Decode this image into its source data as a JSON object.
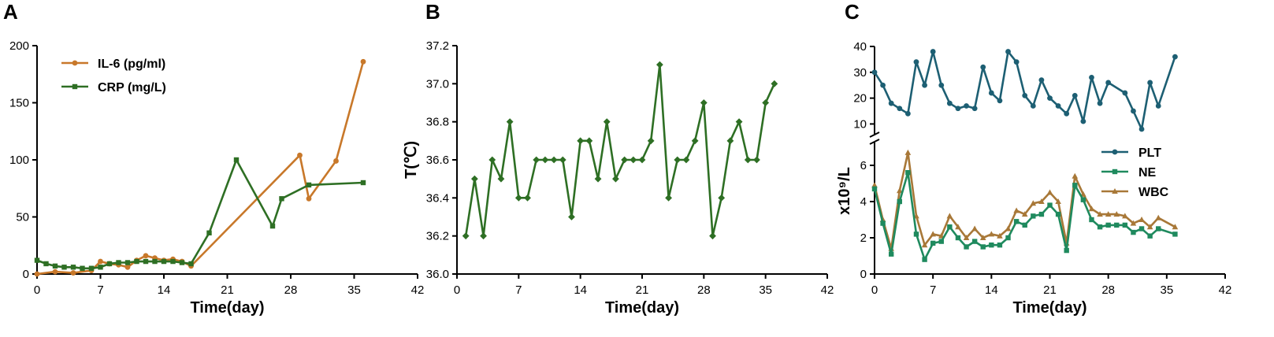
{
  "colors": {
    "il6": "#c8782a",
    "crp": "#2e6f24",
    "temp": "#2e6f24",
    "plt": "#1d5f73",
    "ne": "#1f8a5e",
    "wbc": "#a87838"
  },
  "chart_data": [
    {
      "panel": "A",
      "type": "line",
      "xlabel": "Time(day)",
      "ylabel": "",
      "xlim": [
        0,
        42
      ],
      "ylim": [
        0,
        200
      ],
      "xticks": [
        0,
        7,
        14,
        21,
        28,
        35,
        42
      ],
      "yticks": [
        0,
        50,
        100,
        150,
        200
      ],
      "legend_position": "top-left",
      "series": [
        {
          "name": "IL-6  (pg/ml)",
          "marker": "circle",
          "points": [
            [
              0,
              0
            ],
            [
              2,
              2
            ],
            [
              4,
              1
            ],
            [
              6,
              3
            ],
            [
              7,
              11
            ],
            [
              8,
              9
            ],
            [
              9,
              8
            ],
            [
              10,
              6
            ],
            [
              11,
              12
            ],
            [
              12,
              16
            ],
            [
              13,
              14
            ],
            [
              14,
              12
            ],
            [
              15,
              13
            ],
            [
              16,
              11
            ],
            [
              17,
              7
            ],
            [
              29,
              104
            ],
            [
              30,
              66
            ],
            [
              33,
              99
            ],
            [
              36,
              186
            ]
          ]
        },
        {
          "name": "CRP  (mg/L)",
          "marker": "square",
          "points": [
            [
              0,
              12
            ],
            [
              1,
              9
            ],
            [
              2,
              7
            ],
            [
              3,
              6
            ],
            [
              4,
              6
            ],
            [
              5,
              5
            ],
            [
              6,
              5
            ],
            [
              7,
              6
            ],
            [
              8,
              9
            ],
            [
              9,
              10
            ],
            [
              10,
              10
            ],
            [
              11,
              11
            ],
            [
              12,
              11
            ],
            [
              13,
              11
            ],
            [
              14,
              11
            ],
            [
              15,
              11
            ],
            [
              16,
              10
            ],
            [
              17,
              9
            ],
            [
              19,
              36
            ],
            [
              22,
              100
            ],
            [
              26,
              42
            ],
            [
              27,
              66
            ],
            [
              30,
              78
            ],
            [
              36,
              80
            ]
          ]
        }
      ]
    },
    {
      "panel": "B",
      "type": "line",
      "xlabel": "Time(day)",
      "ylabel": "T(℃)",
      "xlim": [
        0,
        42
      ],
      "ylim": [
        36.0,
        37.2
      ],
      "xticks": [
        0,
        7,
        14,
        21,
        28,
        35,
        42
      ],
      "yticks": [
        "36.0",
        "36.2",
        "36.4",
        "36.6",
        "36.8",
        "37.0",
        "37.2"
      ],
      "series": [
        {
          "name": "",
          "marker": "diamond",
          "points": [
            [
              1,
              36.2
            ],
            [
              2,
              36.5
            ],
            [
              3,
              36.2
            ],
            [
              4,
              36.6
            ],
            [
              5,
              36.5
            ],
            [
              6,
              36.8
            ],
            [
              7,
              36.4
            ],
            [
              8,
              36.4
            ],
            [
              9,
              36.6
            ],
            [
              10,
              36.6
            ],
            [
              11,
              36.6
            ],
            [
              12,
              36.6
            ],
            [
              13,
              36.3
            ],
            [
              14,
              36.7
            ],
            [
              15,
              36.7
            ],
            [
              16,
              36.5
            ],
            [
              17,
              36.8
            ],
            [
              18,
              36.5
            ],
            [
              19,
              36.6
            ],
            [
              20,
              36.6
            ],
            [
              21,
              36.6
            ],
            [
              22,
              36.7
            ],
            [
              23,
              37.1
            ],
            [
              24,
              36.4
            ],
            [
              25,
              36.6
            ],
            [
              26,
              36.6
            ],
            [
              27,
              36.7
            ],
            [
              28,
              36.9
            ],
            [
              29,
              36.2
            ],
            [
              30,
              36.4
            ],
            [
              31,
              36.7
            ],
            [
              32,
              36.8
            ],
            [
              33,
              36.6
            ],
            [
              34,
              36.6
            ],
            [
              35,
              36.9
            ],
            [
              36,
              37.0
            ]
          ]
        }
      ]
    },
    {
      "panel": "C",
      "type": "line",
      "xlabel": "Time(day)",
      "ylabel": "x10⁹/L",
      "xlim": [
        0,
        42
      ],
      "y_break": true,
      "upper_ylim": [
        8,
        40
      ],
      "upper_yticks": [
        10,
        20,
        30,
        40
      ],
      "lower_ylim": [
        0,
        7
      ],
      "lower_yticks": [
        0,
        2,
        4,
        6
      ],
      "xticks": [
        0,
        7,
        14,
        21,
        28,
        35,
        42
      ],
      "legend_position": "right",
      "series": [
        {
          "name": "PLT",
          "marker": "circle",
          "axis": "upper",
          "points": [
            [
              0,
              30
            ],
            [
              1,
              25
            ],
            [
              2,
              18
            ],
            [
              3,
              16
            ],
            [
              4,
              14
            ],
            [
              5,
              34
            ],
            [
              6,
              25
            ],
            [
              7,
              38
            ],
            [
              8,
              25
            ],
            [
              9,
              18
            ],
            [
              10,
              16
            ],
            [
              11,
              17
            ],
            [
              12,
              16
            ],
            [
              13,
              32
            ],
            [
              14,
              22
            ],
            [
              15,
              19
            ],
            [
              16,
              38
            ],
            [
              17,
              34
            ],
            [
              18,
              21
            ],
            [
              19,
              17
            ],
            [
              20,
              27
            ],
            [
              21,
              20
            ],
            [
              22,
              17
            ],
            [
              23,
              14
            ],
            [
              24,
              21
            ],
            [
              25,
              11
            ],
            [
              26,
              28
            ],
            [
              27,
              18
            ],
            [
              28,
              26
            ],
            [
              30,
              22
            ],
            [
              31,
              15
            ],
            [
              32,
              8
            ],
            [
              33,
              26
            ],
            [
              34,
              17
            ],
            [
              36,
              36
            ]
          ]
        },
        {
          "name": "NE",
          "marker": "square",
          "axis": "lower",
          "points": [
            [
              0,
              4.7
            ],
            [
              1,
              2.8
            ],
            [
              2,
              1.1
            ],
            [
              3,
              4.0
            ],
            [
              4,
              5.6
            ],
            [
              5,
              2.2
            ],
            [
              6,
              0.8
            ],
            [
              7,
              1.7
            ],
            [
              8,
              1.8
            ],
            [
              9,
              2.6
            ],
            [
              10,
              2.0
            ],
            [
              11,
              1.5
            ],
            [
              12,
              1.8
            ],
            [
              13,
              1.5
            ],
            [
              14,
              1.6
            ],
            [
              15,
              1.6
            ],
            [
              16,
              2.0
            ],
            [
              17,
              2.9
            ],
            [
              18,
              2.7
            ],
            [
              19,
              3.2
            ],
            [
              20,
              3.3
            ],
            [
              21,
              3.8
            ],
            [
              22,
              3.3
            ],
            [
              23,
              1.3
            ],
            [
              24,
              4.9
            ],
            [
              25,
              4.1
            ],
            [
              26,
              3.0
            ],
            [
              27,
              2.6
            ],
            [
              28,
              2.7
            ],
            [
              29,
              2.7
            ],
            [
              30,
              2.7
            ],
            [
              31,
              2.3
            ],
            [
              32,
              2.5
            ],
            [
              33,
              2.1
            ],
            [
              34,
              2.5
            ],
            [
              36,
              2.2
            ]
          ]
        },
        {
          "name": "WBC",
          "marker": "triangle",
          "axis": "lower",
          "points": [
            [
              0,
              4.9
            ],
            [
              1,
              3.0
            ],
            [
              2,
              1.4
            ],
            [
              3,
              4.6
            ],
            [
              4,
              6.7
            ],
            [
              5,
              3.2
            ],
            [
              6,
              1.6
            ],
            [
              7,
              2.2
            ],
            [
              8,
              2.1
            ],
            [
              9,
              3.2
            ],
            [
              10,
              2.6
            ],
            [
              11,
              2.0
            ],
            [
              12,
              2.5
            ],
            [
              13,
              2.0
            ],
            [
              14,
              2.2
            ],
            [
              15,
              2.1
            ],
            [
              16,
              2.5
            ],
            [
              17,
              3.5
            ],
            [
              18,
              3.3
            ],
            [
              19,
              3.9
            ],
            [
              20,
              4.0
            ],
            [
              21,
              4.5
            ],
            [
              22,
              4.0
            ],
            [
              23,
              1.7
            ],
            [
              24,
              5.4
            ],
            [
              25,
              4.4
            ],
            [
              26,
              3.6
            ],
            [
              27,
              3.3
            ],
            [
              28,
              3.3
            ],
            [
              29,
              3.3
            ],
            [
              30,
              3.2
            ],
            [
              31,
              2.8
            ],
            [
              32,
              3.0
            ],
            [
              33,
              2.6
            ],
            [
              34,
              3.1
            ],
            [
              36,
              2.6
            ]
          ]
        }
      ]
    }
  ]
}
